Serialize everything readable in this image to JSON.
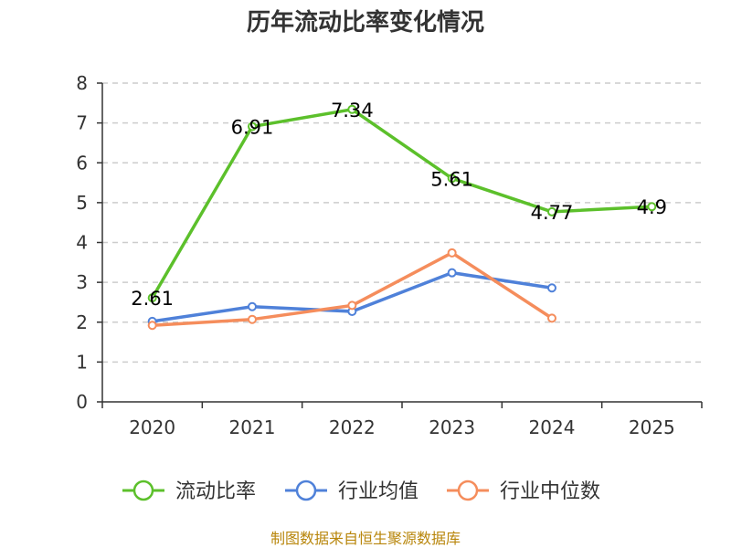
{
  "chart_data": {
    "type": "line",
    "title": "历年流动比率变化情况",
    "xlabel": "",
    "ylabel": "",
    "categories": [
      "2020",
      "2021",
      "2022",
      "2023",
      "2024",
      "2025"
    ],
    "ylim": [
      0,
      8
    ],
    "yticks": [
      "0",
      "1",
      "2",
      "3",
      "4",
      "5",
      "6",
      "7",
      "8"
    ],
    "grid": true,
    "legend_position": "bottom-center",
    "series": [
      {
        "name": "流动比率",
        "color": "#5cc02b",
        "values": [
          2.61,
          6.91,
          7.34,
          5.61,
          4.77,
          4.9
        ],
        "labels": [
          "2.61",
          "6.91",
          "7.34",
          "5.61",
          "4.77",
          "4.9"
        ]
      },
      {
        "name": "行业均值",
        "color": "#4f81d9",
        "values": [
          2.02,
          2.39,
          2.27,
          3.24,
          2.86,
          null
        ]
      },
      {
        "name": "行业中位数",
        "color": "#f58d5c",
        "values": [
          1.92,
          2.07,
          2.42,
          3.74,
          2.1,
          null
        ]
      }
    ],
    "source": "制图数据来自恒生聚源数据库"
  }
}
